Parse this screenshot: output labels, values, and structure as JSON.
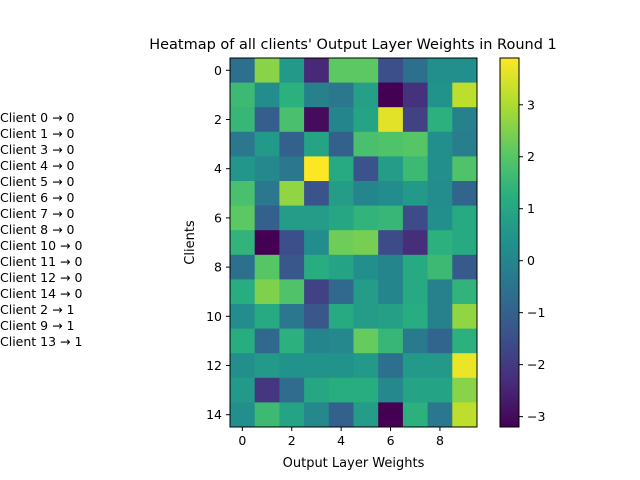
{
  "chart_data": {
    "type": "heatmap",
    "title": "Heatmap of all clients' Output Layer Weights in Round 1",
    "xlabel": "Output Layer Weights",
    "ylabel": "Clients",
    "x_ticks": [
      0,
      2,
      4,
      6,
      8
    ],
    "y_ticks": [
      0,
      2,
      4,
      6,
      8,
      10,
      12,
      14
    ],
    "colorbar": {
      "min": -3.2,
      "max": 3.9,
      "ticks": [
        -3,
        -2,
        -1,
        0,
        1,
        2,
        3
      ],
      "colormap": "viridis"
    },
    "rows": 15,
    "cols": 10,
    "values": [
      [
        -0.6,
        2.6,
        0.6,
        -2.4,
        2.1,
        2.1,
        -1.5,
        -0.6,
        0.3,
        0.3
      ],
      [
        1.6,
        0.2,
        1.3,
        -0.1,
        -0.4,
        0.8,
        -3.2,
        -2.2,
        0.4,
        3.2
      ],
      [
        1.5,
        -1.1,
        1.8,
        -3.0,
        0.0,
        0.9,
        3.6,
        -1.8,
        1.3,
        -0.1
      ],
      [
        -0.4,
        0.6,
        -1.0,
        0.9,
        -1.0,
        1.8,
        1.9,
        2.0,
        0.3,
        -0.2
      ],
      [
        0.5,
        0.1,
        -0.4,
        3.9,
        1.1,
        -1.4,
        0.7,
        1.6,
        0.3,
        1.9
      ],
      [
        1.8,
        -0.4,
        2.7,
        -1.4,
        0.7,
        0.0,
        0.2,
        0.6,
        0.2,
        -0.9
      ],
      [
        2.1,
        -1.0,
        0.7,
        0.7,
        1.0,
        1.4,
        1.5,
        -1.6,
        0.3,
        1.1
      ],
      [
        1.4,
        -3.2,
        -1.5,
        0.2,
        2.3,
        2.4,
        -1.6,
        -2.3,
        1.3,
        1.1
      ],
      [
        -0.6,
        2.0,
        -1.3,
        1.2,
        0.9,
        0.3,
        0.0,
        1.1,
        1.6,
        -1.2
      ],
      [
        1.2,
        2.5,
        1.9,
        -1.8,
        -0.8,
        0.7,
        0.0,
        1.1,
        -0.1,
        1.4
      ],
      [
        0.2,
        1.1,
        -0.4,
        -1.3,
        1.1,
        0.7,
        0.8,
        1.2,
        -0.1,
        2.7
      ],
      [
        1.2,
        -0.8,
        1.3,
        0.0,
        0.1,
        2.2,
        1.5,
        -0.3,
        -0.9,
        1.3
      ],
      [
        0.3,
        0.6,
        0.4,
        0.4,
        0.4,
        0.6,
        -0.6,
        0.6,
        0.6,
        3.7
      ],
      [
        0.6,
        -2.1,
        -0.7,
        1.0,
        1.2,
        1.2,
        0.1,
        0.9,
        0.9,
        2.6
      ],
      [
        0.3,
        1.6,
        0.9,
        0.1,
        -1.0,
        0.7,
        -3.2,
        1.3,
        -0.4,
        3.2
      ]
    ]
  },
  "client_list": [
    "Client 0 → 0",
    "Client 1 → 0",
    "Client 3 → 0",
    "Client 4 → 0",
    "Client 5 → 0",
    "Client 6 → 0",
    "Client 7 → 0",
    "Client 8 → 0",
    "Client 10 → 0",
    "Client 11 → 0",
    "Client 12 → 0",
    "Client 14 → 0",
    "Client 2 → 1",
    "Client 9 → 1",
    "Client 13 → 1"
  ]
}
